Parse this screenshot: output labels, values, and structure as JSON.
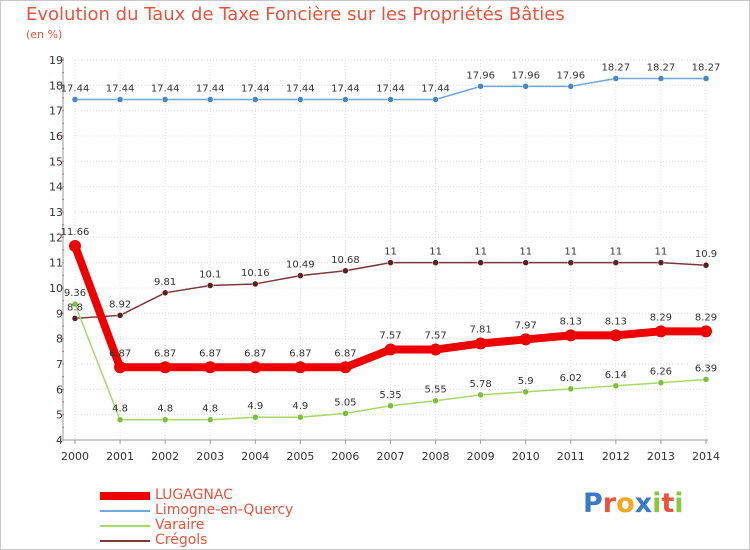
{
  "title": "Evolution du Taux de Taxe Foncière sur les Propriétés Bâties",
  "unit": "(en %)",
  "logo": {
    "letters": [
      "P",
      "r",
      "o",
      "x",
      "i",
      "t",
      "i"
    ],
    "colors": [
      "#3a7ac6",
      "#e8533f",
      "#f5a623",
      "#3a7ac6",
      "#8cc63f",
      "#e8533f",
      "#8cc63f"
    ]
  },
  "chart_data": {
    "type": "line",
    "title": "Evolution du Taux de Taxe Foncière sur les Propriétés Bâties",
    "ylabel": "(en %)",
    "ylim": [
      4,
      19
    ],
    "yticks": [
      4,
      5,
      6,
      7,
      8,
      9,
      10,
      11,
      12,
      13,
      14,
      15,
      16,
      17,
      18,
      19
    ],
    "categories": [
      "2000",
      "2001",
      "2002",
      "2003",
      "2004",
      "2005",
      "2006",
      "2007",
      "2008",
      "2009",
      "2010",
      "2011",
      "2012",
      "2013",
      "2014"
    ],
    "series": [
      {
        "name": "Limogne-en-Quercy",
        "color": "#6fa8dc",
        "marker": "#4a86c5",
        "width": 1.5,
        "values": [
          17.44,
          17.44,
          17.44,
          17.44,
          17.44,
          17.44,
          17.44,
          17.44,
          17.44,
          17.96,
          17.96,
          17.96,
          18.27,
          18.27,
          18.27
        ],
        "labels": [
          "17.44",
          "17.44",
          "17.44",
          "17.44",
          "17.44",
          "17.44",
          "17.44",
          "17.44",
          "17.44",
          "17.96",
          "17.96",
          "17.96",
          "18.27",
          "18.27",
          "18.27"
        ]
      },
      {
        "name": "Crégols",
        "color": "#7b3a3a",
        "marker": "#5b2020",
        "width": 1.5,
        "values": [
          8.8,
          8.92,
          9.81,
          10.1,
          10.16,
          10.49,
          10.68,
          11,
          11,
          11,
          11,
          11,
          11,
          11,
          10.9
        ],
        "labels": [
          "8.8",
          "8.92",
          "9.81",
          "10.1",
          "10.16",
          "10.49",
          "10.68",
          "11",
          "11",
          "11",
          "11",
          "11",
          "11",
          "11",
          "10.9"
        ]
      },
      {
        "name": "Varaire",
        "color": "#a6d96a",
        "marker": "#7cbf3c",
        "width": 1.5,
        "values": [
          9.36,
          4.8,
          4.8,
          4.8,
          4.9,
          4.9,
          5.05,
          5.35,
          5.55,
          5.78,
          5.9,
          6.02,
          6.14,
          6.26,
          6.39
        ],
        "labels": [
          "9.36",
          "4.8",
          "4.8",
          "4.8",
          "4.9",
          "4.9",
          "5.05",
          "5.35",
          "5.55",
          "5.78",
          "5.9",
          "6.02",
          "6.14",
          "6.26",
          "6.39"
        ]
      },
      {
        "name": "LUGAGNAC",
        "color": "#ee0000",
        "marker": "#ee0000",
        "width": 8,
        "values": [
          11.66,
          6.87,
          6.87,
          6.87,
          6.87,
          6.87,
          6.87,
          7.57,
          7.57,
          7.81,
          7.97,
          8.13,
          8.13,
          8.29,
          8.29
        ],
        "labels": [
          "11.66",
          "6.87",
          "6.87",
          "6.87",
          "6.87",
          "6.87",
          "6.87",
          "7.57",
          "7.57",
          "7.81",
          "7.97",
          "8.13",
          "8.13",
          "8.29",
          "8.29"
        ]
      }
    ],
    "legend": [
      {
        "name": "LUGAGNAC",
        "color": "#ee0000",
        "thick": true
      },
      {
        "name": "Limogne-en-Quercy",
        "color": "#6fa8dc",
        "thick": false
      },
      {
        "name": "Varaire",
        "color": "#a6d96a",
        "thick": false
      },
      {
        "name": "Crégols",
        "color": "#7b3a3a",
        "thick": false
      }
    ]
  }
}
